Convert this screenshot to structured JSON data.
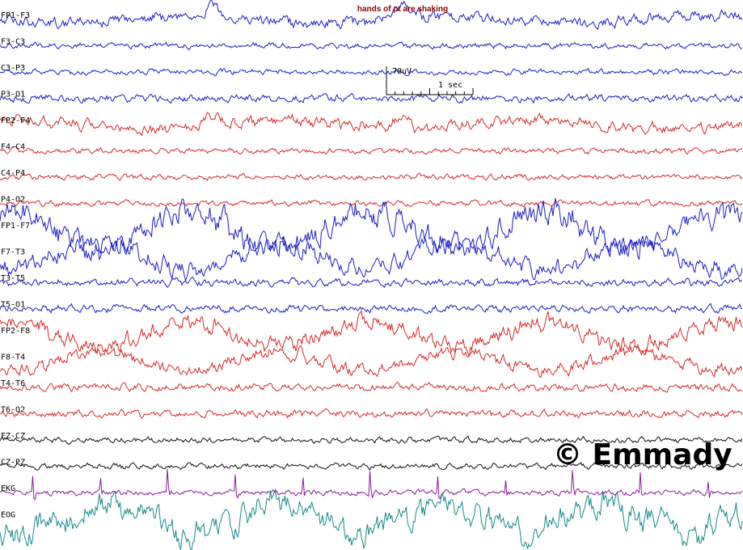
{
  "chart_data": {
    "type": "line",
    "annotation": "hands of pt are shaking",
    "scale": {
      "amplitude_label": "70uV",
      "time_label": "1 sec"
    },
    "colors": {
      "blue": "#1c1cc8",
      "red": "#d42a2a",
      "black": "#111111",
      "purple": "#8a1a9a",
      "teal": "#158a8a"
    },
    "channels": [
      {
        "name": "FP1-F3",
        "color": "blue",
        "amp": 6,
        "pattern": "frontal"
      },
      {
        "name": "F3-C3",
        "color": "blue",
        "amp": 3,
        "pattern": "bg"
      },
      {
        "name": "C3-P3",
        "color": "blue",
        "amp": 3,
        "pattern": "bg"
      },
      {
        "name": "P3-O1",
        "color": "blue",
        "amp": 4,
        "pattern": "bg"
      },
      {
        "name": "FP2-F4",
        "color": "red",
        "amp": 6,
        "pattern": "frontal"
      },
      {
        "name": "F4-C4",
        "color": "red",
        "amp": 3,
        "pattern": "bg"
      },
      {
        "name": "C4-P4",
        "color": "red",
        "amp": 3,
        "pattern": "bg"
      },
      {
        "name": "P4-O2",
        "color": "red",
        "amp": 3,
        "pattern": "bg"
      },
      {
        "name": "FP1-F7",
        "color": "blue",
        "amp": 14,
        "pattern": "eye"
      },
      {
        "name": "F7-T3",
        "color": "blue",
        "amp": 10,
        "pattern": "eye-inv"
      },
      {
        "name": "T3-T5",
        "color": "blue",
        "amp": 4,
        "pattern": "bg"
      },
      {
        "name": "T5-O1",
        "color": "blue",
        "amp": 4,
        "pattern": "bg"
      },
      {
        "name": "FP2-F8",
        "color": "red",
        "amp": 9,
        "pattern": "eye"
      },
      {
        "name": "F8-T4",
        "color": "red",
        "amp": 7,
        "pattern": "eye-inv"
      },
      {
        "name": "T4-T6",
        "color": "red",
        "amp": 4,
        "pattern": "bg"
      },
      {
        "name": "T6-O2",
        "color": "red",
        "amp": 4,
        "pattern": "bg"
      },
      {
        "name": "FZ-CZ",
        "color": "black",
        "amp": 3,
        "pattern": "bg"
      },
      {
        "name": "CZ-PZ",
        "color": "black",
        "amp": 3,
        "pattern": "bg"
      },
      {
        "name": "EKG",
        "color": "purple",
        "amp": 3,
        "pattern": "ekg"
      },
      {
        "name": "EOG",
        "color": "teal",
        "amp": 14,
        "pattern": "eog"
      }
    ]
  },
  "watermark": "© Emmady"
}
